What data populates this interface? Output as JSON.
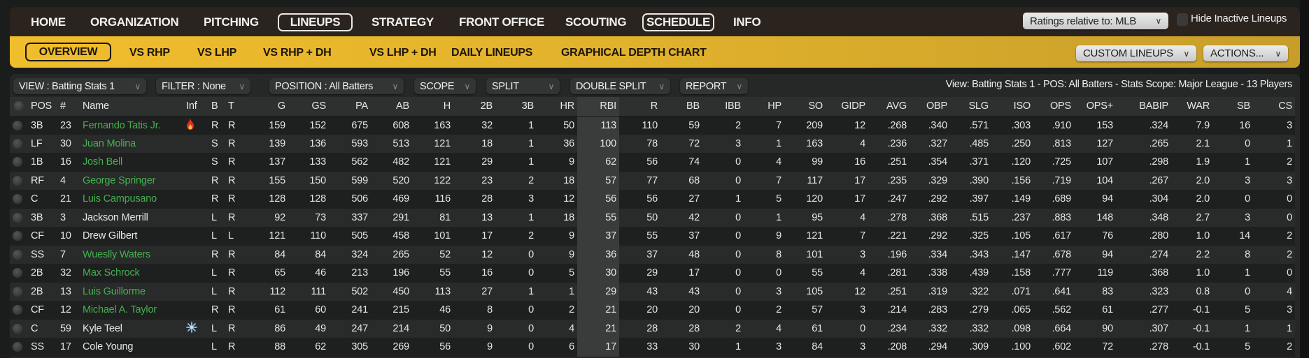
{
  "nav": {
    "items": [
      "HOME",
      "ORGANIZATION",
      "PITCHING",
      "LINEUPS",
      "STRATEGY",
      "FRONT OFFICE",
      "SCOUTING",
      "SCHEDULE",
      "INFO"
    ],
    "active": [
      "LINEUPS",
      "SCHEDULE"
    ],
    "ratings_dropdown": "Ratings relative to: MLB",
    "hide_inactive_label": "Hide Inactive Lineups",
    "hide_inactive_checked": false
  },
  "subnav": {
    "items": [
      "OVERVIEW",
      "VS RHP",
      "VS LHP",
      "VS RHP + DH",
      "VS LHP + DH",
      "DAILY LINEUPS",
      "GRAPHICAL DEPTH CHART"
    ],
    "active": "OVERVIEW",
    "custom_lineups": "CUSTOM LINEUPS",
    "actions": "ACTIONS..."
  },
  "filters": {
    "view": "VIEW : Batting Stats 1",
    "filter": "FILTER : None",
    "position": "POSITION : All Batters",
    "scope": "SCOPE",
    "split": "SPLIT",
    "double_split": "DOUBLE SPLIT",
    "report": "REPORT"
  },
  "summary": "View: Batting Stats 1 - POS: All Batters - Stats Scope: Major League - 13 Players",
  "colors": {
    "accent": "#e8b82c",
    "nav_bg": "#2b231e",
    "player_green": "#45b04f",
    "sorted_column": "#3a3b3b"
  },
  "table": {
    "sorted_by": "RBI",
    "columns": [
      "POS",
      "#",
      "Name",
      "Inf",
      "B",
      "T",
      "G",
      "GS",
      "PA",
      "AB",
      "H",
      "2B",
      "3B",
      "HR",
      "RBI",
      "R",
      "BB",
      "IBB",
      "HP",
      "SO",
      "GIDP",
      "AVG",
      "OBP",
      "SLG",
      "ISO",
      "OPS",
      "OPS+",
      "BABIP",
      "WAR",
      "SB",
      "CS"
    ],
    "rows": [
      {
        "pos": "3B",
        "num": "23",
        "name": "Fernando Tatis Jr.",
        "green": true,
        "inf": "fire-icon",
        "b": "R",
        "t": "R",
        "stats": [
          "159",
          "152",
          "675",
          "608",
          "163",
          "32",
          "1",
          "50",
          "113",
          "110",
          "59",
          "2",
          "7",
          "209",
          "12",
          ".268",
          ".340",
          ".571",
          ".303",
          ".910",
          "153",
          ".324",
          "7.9",
          "16",
          "3"
        ]
      },
      {
        "pos": "LF",
        "num": "30",
        "name": "Juan Molina",
        "green": true,
        "inf": "",
        "b": "S",
        "t": "R",
        "stats": [
          "139",
          "136",
          "593",
          "513",
          "121",
          "18",
          "1",
          "36",
          "100",
          "78",
          "72",
          "3",
          "1",
          "163",
          "4",
          ".236",
          ".327",
          ".485",
          ".250",
          ".813",
          "127",
          ".265",
          "2.1",
          "0",
          "1"
        ]
      },
      {
        "pos": "1B",
        "num": "16",
        "name": "Josh Bell",
        "green": true,
        "inf": "",
        "b": "S",
        "t": "R",
        "stats": [
          "137",
          "133",
          "562",
          "482",
          "121",
          "29",
          "1",
          "9",
          "62",
          "56",
          "74",
          "0",
          "4",
          "99",
          "16",
          ".251",
          ".354",
          ".371",
          ".120",
          ".725",
          "107",
          ".298",
          "1.9",
          "1",
          "2"
        ]
      },
      {
        "pos": "RF",
        "num": "4",
        "name": "George Springer",
        "green": true,
        "inf": "",
        "b": "R",
        "t": "R",
        "stats": [
          "155",
          "150",
          "599",
          "520",
          "122",
          "23",
          "2",
          "18",
          "57",
          "77",
          "68",
          "0",
          "7",
          "117",
          "17",
          ".235",
          ".329",
          ".390",
          ".156",
          ".719",
          "104",
          ".267",
          "2.0",
          "3",
          "3"
        ]
      },
      {
        "pos": "C",
        "num": "21",
        "name": "Luis Campusano",
        "green": true,
        "inf": "",
        "b": "R",
        "t": "R",
        "stats": [
          "128",
          "128",
          "506",
          "469",
          "116",
          "28",
          "3",
          "12",
          "56",
          "56",
          "27",
          "1",
          "5",
          "120",
          "17",
          ".247",
          ".292",
          ".397",
          ".149",
          ".689",
          "94",
          ".304",
          "2.0",
          "0",
          "0"
        ]
      },
      {
        "pos": "3B",
        "num": "3",
        "name": "Jackson Merrill",
        "green": false,
        "inf": "",
        "b": "L",
        "t": "R",
        "stats": [
          "92",
          "73",
          "337",
          "291",
          "81",
          "13",
          "1",
          "18",
          "55",
          "50",
          "42",
          "0",
          "1",
          "95",
          "4",
          ".278",
          ".368",
          ".515",
          ".237",
          ".883",
          "148",
          ".348",
          "2.7",
          "3",
          "0"
        ]
      },
      {
        "pos": "CF",
        "num": "10",
        "name": "Drew Gilbert",
        "green": false,
        "inf": "",
        "b": "L",
        "t": "L",
        "stats": [
          "121",
          "110",
          "505",
          "458",
          "101",
          "17",
          "2",
          "9",
          "37",
          "55",
          "37",
          "0",
          "9",
          "121",
          "7",
          ".221",
          ".292",
          ".325",
          ".105",
          ".617",
          "76",
          ".280",
          "1.0",
          "14",
          "2"
        ]
      },
      {
        "pos": "SS",
        "num": "7",
        "name": "Wueslly Waters",
        "green": true,
        "inf": "",
        "b": "R",
        "t": "R",
        "stats": [
          "84",
          "84",
          "324",
          "265",
          "52",
          "12",
          "0",
          "9",
          "36",
          "37",
          "48",
          "0",
          "8",
          "101",
          "3",
          ".196",
          ".334",
          ".343",
          ".147",
          ".678",
          "94",
          ".274",
          "2.2",
          "8",
          "2"
        ]
      },
      {
        "pos": "2B",
        "num": "32",
        "name": "Max Schrock",
        "green": true,
        "inf": "",
        "b": "L",
        "t": "R",
        "stats": [
          "65",
          "46",
          "213",
          "196",
          "55",
          "16",
          "0",
          "5",
          "30",
          "29",
          "17",
          "0",
          "0",
          "55",
          "4",
          ".281",
          ".338",
          ".439",
          ".158",
          ".777",
          "119",
          ".368",
          "1.0",
          "1",
          "0"
        ]
      },
      {
        "pos": "2B",
        "num": "13",
        "name": "Luis Guillorme",
        "green": true,
        "inf": "",
        "b": "L",
        "t": "R",
        "stats": [
          "112",
          "111",
          "502",
          "450",
          "113",
          "27",
          "1",
          "1",
          "29",
          "43",
          "43",
          "0",
          "3",
          "105",
          "12",
          ".251",
          ".319",
          ".322",
          ".071",
          ".641",
          "83",
          ".323",
          "0.8",
          "0",
          "4"
        ]
      },
      {
        "pos": "CF",
        "num": "12",
        "name": "Michael A. Taylor",
        "green": true,
        "inf": "",
        "b": "R",
        "t": "R",
        "stats": [
          "61",
          "60",
          "241",
          "215",
          "46",
          "8",
          "0",
          "2",
          "21",
          "20",
          "20",
          "0",
          "2",
          "57",
          "3",
          ".214",
          ".283",
          ".279",
          ".065",
          ".562",
          "61",
          ".277",
          "-0.1",
          "5",
          "3"
        ]
      },
      {
        "pos": "C",
        "num": "59",
        "name": "Kyle Teel",
        "green": false,
        "inf": "snowflake-icon",
        "b": "L",
        "t": "R",
        "stats": [
          "86",
          "49",
          "247",
          "214",
          "50",
          "9",
          "0",
          "4",
          "21",
          "28",
          "28",
          "2",
          "4",
          "61",
          "0",
          ".234",
          ".332",
          ".332",
          ".098",
          ".664",
          "90",
          ".307",
          "-0.1",
          "1",
          "1"
        ]
      },
      {
        "pos": "SS",
        "num": "17",
        "name": "Cole Young",
        "green": false,
        "inf": "",
        "b": "L",
        "t": "R",
        "stats": [
          "88",
          "62",
          "305",
          "269",
          "56",
          "9",
          "0",
          "6",
          "17",
          "33",
          "30",
          "1",
          "3",
          "84",
          "3",
          ".208",
          ".294",
          ".309",
          ".100",
          ".602",
          "72",
          ".278",
          "-0.1",
          "5",
          "2"
        ]
      }
    ]
  }
}
